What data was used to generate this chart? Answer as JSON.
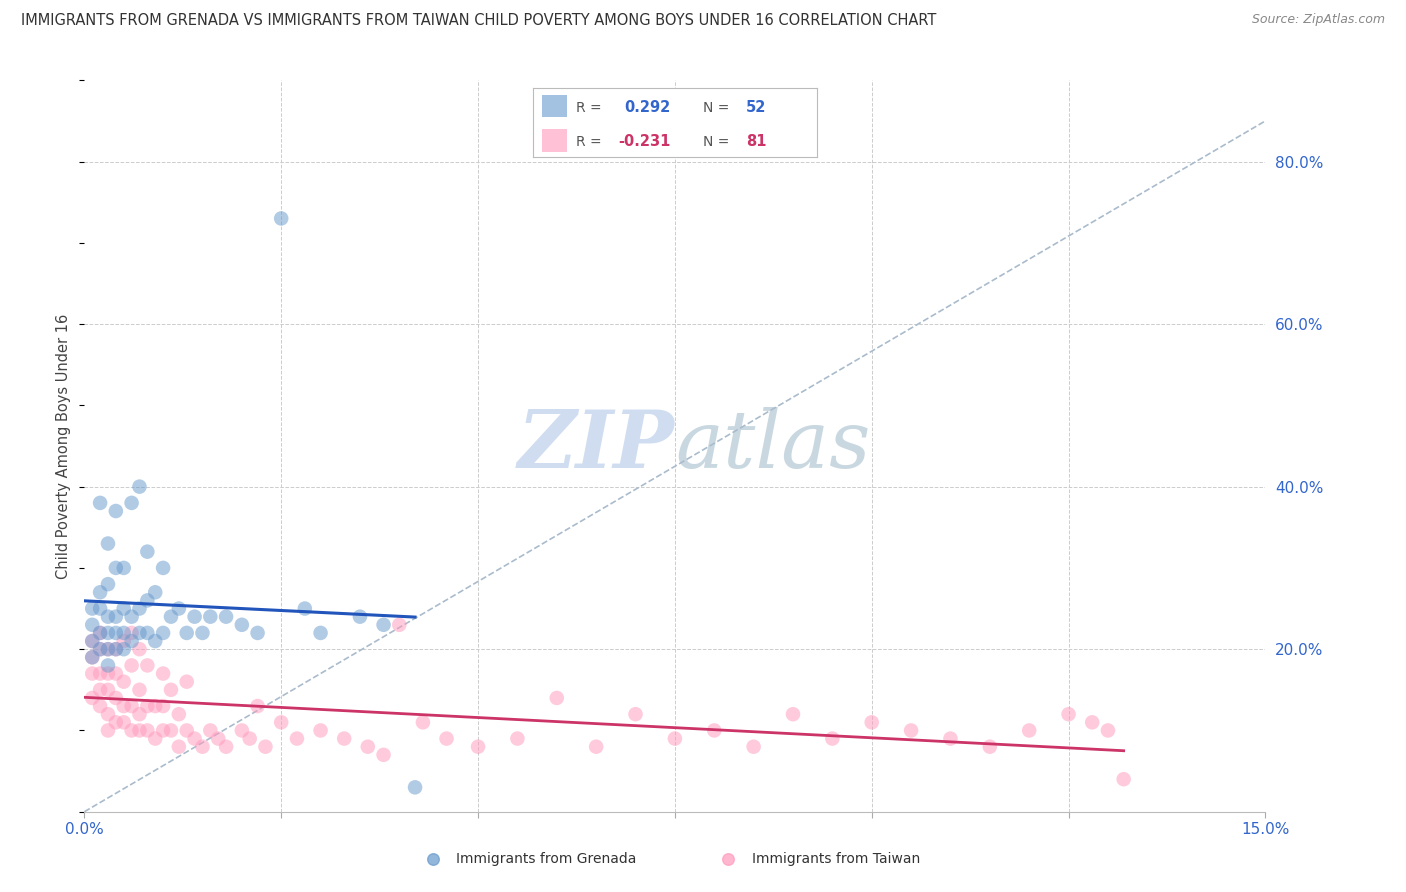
{
  "title": "IMMIGRANTS FROM GRENADA VS IMMIGRANTS FROM TAIWAN CHILD POVERTY AMONG BOYS UNDER 16 CORRELATION CHART",
  "source": "Source: ZipAtlas.com",
  "ylabel": "Child Poverty Among Boys Under 16",
  "xlim": [
    0.0,
    0.15
  ],
  "ylim": [
    0.0,
    0.9
  ],
  "xtick_vals": [
    0.0,
    0.025,
    0.05,
    0.075,
    0.1,
    0.125,
    0.15
  ],
  "xticklabels": [
    "0.0%",
    "",
    "",
    "",
    "",
    "",
    "15.0%"
  ],
  "ytick_vals": [
    0.0,
    0.2,
    0.4,
    0.6,
    0.8
  ],
  "yticklabels_right": [
    "",
    "20.0%",
    "40.0%",
    "60.0%",
    "80.0%"
  ],
  "grenada_color": "#6699cc",
  "taiwan_color": "#ff99bb",
  "line_grenada_color": "#2255bb",
  "line_taiwan_color": "#cc3366",
  "grenada_R": 0.292,
  "grenada_N": 52,
  "taiwan_R": -0.231,
  "taiwan_N": 81,
  "background_color": "#ffffff",
  "grid_color": "#cccccc",
  "watermark_color": "#c8d8ee",
  "dash_line_color": "#aabbcc",
  "grenada_scatter_x": [
    0.001,
    0.001,
    0.001,
    0.001,
    0.002,
    0.002,
    0.002,
    0.002,
    0.002,
    0.003,
    0.003,
    0.003,
    0.003,
    0.003,
    0.003,
    0.004,
    0.004,
    0.004,
    0.004,
    0.004,
    0.005,
    0.005,
    0.005,
    0.005,
    0.006,
    0.006,
    0.006,
    0.007,
    0.007,
    0.007,
    0.008,
    0.008,
    0.008,
    0.009,
    0.009,
    0.01,
    0.01,
    0.011,
    0.012,
    0.013,
    0.014,
    0.015,
    0.016,
    0.018,
    0.02,
    0.022,
    0.025,
    0.028,
    0.03,
    0.035,
    0.038,
    0.042
  ],
  "grenada_scatter_y": [
    0.19,
    0.21,
    0.23,
    0.25,
    0.2,
    0.22,
    0.25,
    0.27,
    0.38,
    0.18,
    0.2,
    0.22,
    0.24,
    0.28,
    0.33,
    0.2,
    0.22,
    0.24,
    0.3,
    0.37,
    0.2,
    0.22,
    0.25,
    0.3,
    0.21,
    0.24,
    0.38,
    0.22,
    0.25,
    0.4,
    0.22,
    0.26,
    0.32,
    0.21,
    0.27,
    0.22,
    0.3,
    0.24,
    0.25,
    0.22,
    0.24,
    0.22,
    0.24,
    0.24,
    0.23,
    0.22,
    0.73,
    0.25,
    0.22,
    0.24,
    0.23,
    0.03
  ],
  "taiwan_scatter_x": [
    0.001,
    0.001,
    0.001,
    0.001,
    0.002,
    0.002,
    0.002,
    0.002,
    0.002,
    0.003,
    0.003,
    0.003,
    0.003,
    0.003,
    0.004,
    0.004,
    0.004,
    0.004,
    0.005,
    0.005,
    0.005,
    0.005,
    0.006,
    0.006,
    0.006,
    0.006,
    0.007,
    0.007,
    0.007,
    0.007,
    0.008,
    0.008,
    0.008,
    0.009,
    0.009,
    0.01,
    0.01,
    0.01,
    0.011,
    0.011,
    0.012,
    0.012,
    0.013,
    0.013,
    0.014,
    0.015,
    0.016,
    0.017,
    0.018,
    0.02,
    0.021,
    0.022,
    0.023,
    0.025,
    0.027,
    0.03,
    0.033,
    0.036,
    0.038,
    0.04,
    0.043,
    0.046,
    0.05,
    0.055,
    0.06,
    0.065,
    0.07,
    0.075,
    0.08,
    0.085,
    0.09,
    0.095,
    0.1,
    0.105,
    0.11,
    0.115,
    0.12,
    0.125,
    0.128,
    0.13,
    0.132
  ],
  "taiwan_scatter_y": [
    0.14,
    0.17,
    0.19,
    0.21,
    0.13,
    0.15,
    0.17,
    0.2,
    0.22,
    0.1,
    0.12,
    0.15,
    0.17,
    0.2,
    0.11,
    0.14,
    0.17,
    0.2,
    0.11,
    0.13,
    0.16,
    0.21,
    0.1,
    0.13,
    0.18,
    0.22,
    0.1,
    0.12,
    0.15,
    0.2,
    0.1,
    0.13,
    0.18,
    0.09,
    0.13,
    0.1,
    0.13,
    0.17,
    0.1,
    0.15,
    0.08,
    0.12,
    0.1,
    0.16,
    0.09,
    0.08,
    0.1,
    0.09,
    0.08,
    0.1,
    0.09,
    0.13,
    0.08,
    0.11,
    0.09,
    0.1,
    0.09,
    0.08,
    0.07,
    0.23,
    0.11,
    0.09,
    0.08,
    0.09,
    0.14,
    0.08,
    0.12,
    0.09,
    0.1,
    0.08,
    0.12,
    0.09,
    0.11,
    0.1,
    0.09,
    0.08,
    0.1,
    0.12,
    0.11,
    0.1,
    0.04
  ],
  "grenada_line_x": [
    0.0,
    0.042
  ],
  "taiwan_line_x": [
    0.0,
    0.132
  ],
  "dash_line_pts": [
    [
      0.0,
      0.0
    ],
    [
      0.15,
      0.85
    ]
  ]
}
